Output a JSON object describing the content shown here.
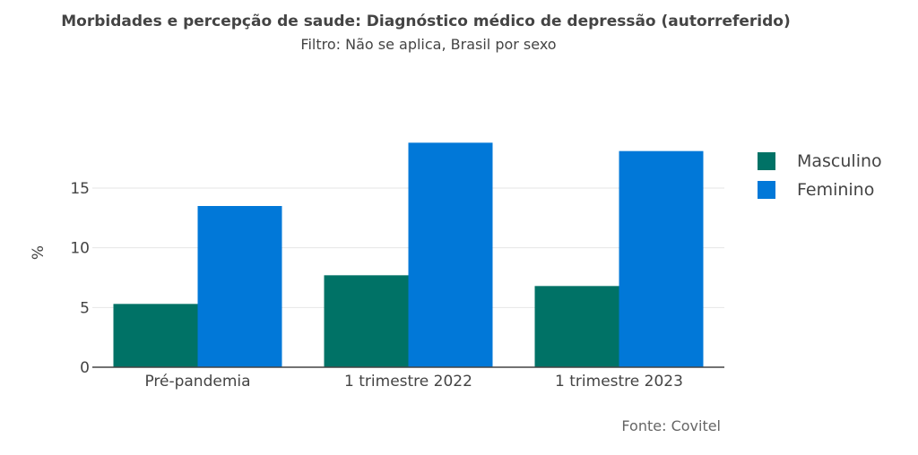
{
  "chart_data": {
    "type": "bar",
    "title": "Morbidades e percepção de saude: Diagnóstico médico de depressão (autorreferido)",
    "subtitle": "Filtro: Não se aplica, Brasil por sexo",
    "source": "Fonte: Covitel",
    "xlabel": "",
    "ylabel": "%",
    "ylim": [
      0,
      19.5
    ],
    "yticks": [
      0,
      5,
      10,
      15
    ],
    "grid": true,
    "legend_position": "right",
    "categories": [
      "Pré-pandemia",
      "1 trimestre 2022",
      "1 trimestre 2023"
    ],
    "series": [
      {
        "name": "Masculino",
        "color": "#007266",
        "values": [
          5.3,
          7.7,
          6.8
        ]
      },
      {
        "name": "Feminino",
        "color": "#0178D8",
        "values": [
          13.5,
          18.8,
          18.1
        ]
      }
    ]
  }
}
